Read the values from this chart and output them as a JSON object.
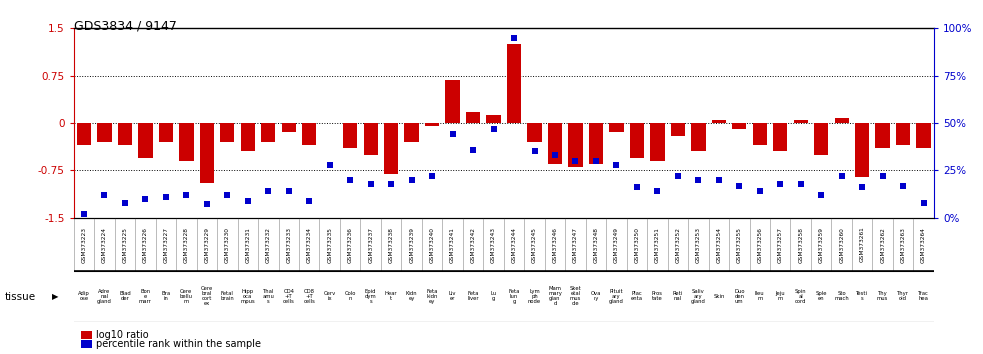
{
  "title": "GDS3834 / 9147",
  "gsm_ids": [
    "GSM373223",
    "GSM373224",
    "GSM373225",
    "GSM373226",
    "GSM373227",
    "GSM373228",
    "GSM373229",
    "GSM373230",
    "GSM373231",
    "GSM373232",
    "GSM373233",
    "GSM373234",
    "GSM373235",
    "GSM373236",
    "GSM373237",
    "GSM373238",
    "GSM373239",
    "GSM373240",
    "GSM373241",
    "GSM373242",
    "GSM373243",
    "GSM373244",
    "GSM373245",
    "GSM373246",
    "GSM373247",
    "GSM373248",
    "GSM373249",
    "GSM373250",
    "GSM373251",
    "GSM373252",
    "GSM373253",
    "GSM373254",
    "GSM373255",
    "GSM373256",
    "GSM373257",
    "GSM373258",
    "GSM373259",
    "GSM373260",
    "GSM373261",
    "GSM373262",
    "GSM373263",
    "GSM373264"
  ],
  "tissue_short": [
    "Adip\nose",
    "Adre\nnal\ngland",
    "Blad\nder",
    "Bon\ne\nmarr",
    "Bra\nin",
    "Cere\nbellu\nm",
    "Cere\nbral\ncort\nex",
    "Fetal\nbrain",
    "Hipp\noca\nmpus",
    "Thal\namu\ns",
    "CD4\n+T\ncells",
    "CD8\n+T\ncells",
    "Cerv\nix",
    "Colo\nn",
    "Epid\ndym\ns",
    "Hear\nt",
    "Kidn\ney",
    "Feta\nkidn\ney",
    "Liv\ner",
    "Feta\nliver",
    "Lu\ng",
    "Feta\nlun\ng",
    "Lym\nph\nnode",
    "Mam\nmary\nglan\nd",
    "Sket\netal\nmus\ncle",
    "Ova\nry",
    "Pituit\nary\ngland",
    "Plac\nenta",
    "Pros\ntate",
    "Reti\nnal",
    "Saliv\nary\ngland",
    "Skin",
    "Duo\nden\num",
    "Ileu\nm",
    "Jeju\nm",
    "Spin\nal\ncord",
    "Sple\nen",
    "Sto\nmach",
    "Testi\ns",
    "Thy\nmus",
    "Thyr\noid",
    "Trac\nhea"
  ],
  "log10_ratio": [
    -0.35,
    -0.3,
    -0.35,
    -0.55,
    -0.3,
    -0.6,
    -0.95,
    -0.3,
    -0.45,
    -0.3,
    -0.15,
    -0.35,
    0.0,
    -0.4,
    -0.5,
    -0.8,
    -0.3,
    -0.05,
    0.68,
    0.18,
    0.12,
    1.25,
    -0.3,
    -0.65,
    -0.7,
    -0.65,
    -0.15,
    -0.55,
    -0.6,
    -0.2,
    -0.45,
    0.05,
    -0.1,
    -0.35,
    -0.45,
    0.05,
    -0.5,
    0.08,
    -0.85,
    -0.4,
    -0.35,
    -0.4
  ],
  "percentile": [
    2,
    12,
    8,
    10,
    11,
    12,
    7,
    12,
    9,
    14,
    14,
    9,
    28,
    20,
    18,
    18,
    20,
    22,
    44,
    36,
    47,
    95,
    35,
    33,
    30,
    30,
    28,
    16,
    14,
    22,
    20,
    20,
    17,
    14,
    18,
    18,
    12,
    22,
    16,
    22,
    17,
    8
  ],
  "bar_color": "#cc0000",
  "dot_color": "#0000cc",
  "bg_color": "#ffffff",
  "left_axis_color": "#cc0000",
  "right_axis_color": "#0000cc",
  "ylim": [
    -1.5,
    1.5
  ],
  "yticks_left": [
    -1.5,
    -0.75,
    0,
    0.75,
    1.5
  ],
  "yticks_right": [
    0,
    25,
    50,
    75,
    100
  ],
  "dotted_lines": [
    -0.75,
    0.0,
    0.75
  ],
  "header_bg": "#cccccc",
  "tissue_bg": "#99cc99",
  "cell_border": "#888888"
}
